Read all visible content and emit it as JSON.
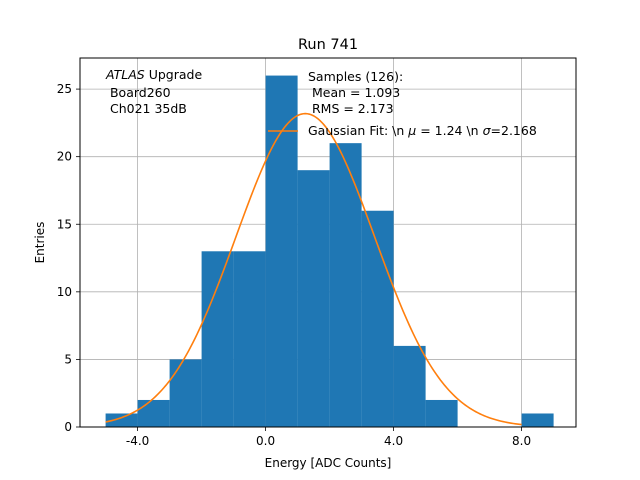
{
  "chart_data": {
    "type": "bar",
    "title": "Run 741",
    "xlabel": "Energy [ADC Counts]",
    "ylabel": "Entries",
    "xlim": [
      -5.8,
      9.7
    ],
    "ylim": [
      0,
      27.3
    ],
    "grid": true,
    "x_ticks": [
      {
        "value": -4,
        "label": "-4.0"
      },
      {
        "value": 0,
        "label": "0.0"
      },
      {
        "value": 4,
        "label": "4.0"
      },
      {
        "value": 8,
        "label": "8.0"
      }
    ],
    "y_ticks": [
      {
        "value": 0,
        "label": "0"
      },
      {
        "value": 5,
        "label": "5"
      },
      {
        "value": 10,
        "label": "10"
      },
      {
        "value": 15,
        "label": "15"
      },
      {
        "value": 20,
        "label": "20"
      },
      {
        "value": 25,
        "label": "25"
      }
    ],
    "histogram": {
      "bin_edges": [
        -5,
        -4,
        -3,
        -2,
        -1,
        0,
        1,
        2,
        3,
        4,
        5,
        6,
        7,
        8,
        9
      ],
      "counts": [
        1,
        2,
        5,
        13,
        13,
        26,
        19,
        21,
        16,
        6,
        2,
        0,
        0,
        1
      ],
      "color": "#1f77b4"
    },
    "fit": {
      "type": "gaussian",
      "amplitude": 126,
      "mu": 1.24,
      "sigma": 2.168,
      "x_range": [
        -5,
        8
      ],
      "color": "#ff7f0e"
    },
    "annotation": {
      "italic_part": "ATLAS",
      "rest": " Upgrade",
      "line2": " Board260",
      "line3": " Ch021 35dB"
    },
    "legend": {
      "position": "top-right",
      "samples_line1": "Samples (126):",
      "samples_line2": " Mean = 1.093",
      "samples_line3": " RMS = 2.173",
      "fit_label_pre": "Gaussian Fit: \\n ",
      "fit_mu_symbol": "μ",
      "fit_label_mid": " = 1.24 \\n ",
      "fit_sigma_symbol": "σ",
      "fit_label_post": "=2.168"
    }
  }
}
